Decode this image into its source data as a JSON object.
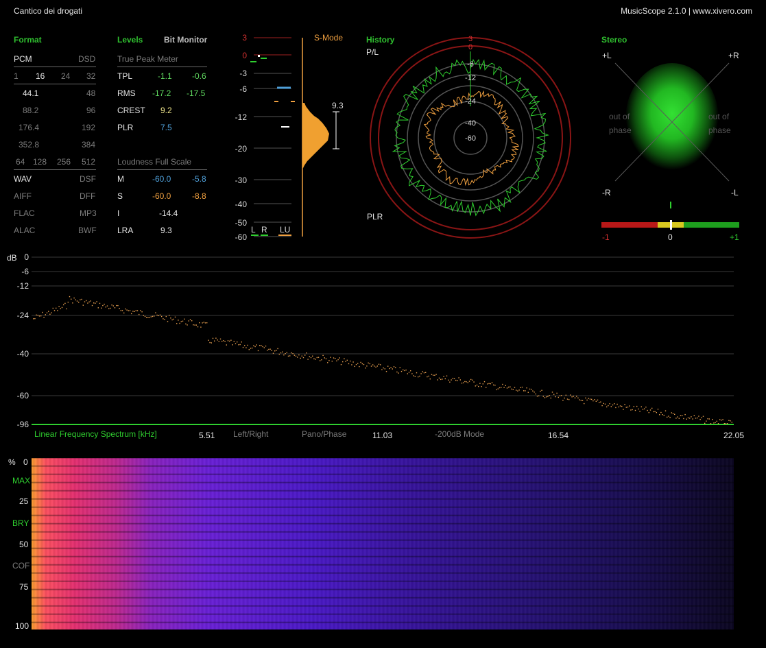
{
  "title": "Cantico dei drogati",
  "app_info": "MusicScope 2.1.0 | www.xivero.com",
  "format": {
    "heading": "Format",
    "pcm_label": "PCM",
    "dsd_label": "DSD",
    "bit_depths": [
      "1",
      "16",
      "24",
      "32"
    ],
    "rates": [
      {
        "pcm": "44.1",
        "dsd": "48",
        "active": true
      },
      {
        "pcm": "88.2",
        "dsd": "96",
        "active": false
      },
      {
        "pcm": "176.4",
        "dsd": "192",
        "active": false
      },
      {
        "pcm": "352.8",
        "dsd": "384",
        "active": false
      }
    ],
    "dsd_rates": [
      "64",
      "128",
      "256",
      "512"
    ],
    "containers": [
      {
        "left": "WAV",
        "right": "DSF",
        "left_active": true
      },
      {
        "left": "AIFF",
        "right": "DFF",
        "left_active": false
      },
      {
        "left": "FLAC",
        "right": "MP3",
        "left_active": false
      },
      {
        "left": "ALAC",
        "right": "BWF",
        "left_active": false
      }
    ]
  },
  "levels": {
    "heading": "Levels",
    "bit_monitor": "Bit Monitor",
    "true_peak_title": "True Peak Meter",
    "rows": [
      {
        "label": "TPL",
        "a": "-1.1",
        "b": "-0.6"
      },
      {
        "label": "RMS",
        "a": "-17.2",
        "b": "-17.5"
      },
      {
        "label": "CREST",
        "a": "9.2",
        "b": ""
      },
      {
        "label": "PLR",
        "a": "7.5",
        "b": ""
      }
    ],
    "loudness_title": "Loudness Full Scale",
    "loudness_rows": [
      {
        "label": "M",
        "a": "-60.0",
        "b": "-5.8"
      },
      {
        "label": "S",
        "a": "-60.0",
        "b": "-8.8"
      },
      {
        "label": "I",
        "a": "-14.4",
        "b": ""
      },
      {
        "label": "LRA",
        "a": "9.3",
        "b": ""
      }
    ]
  },
  "meter": {
    "scale": [
      "3",
      "0",
      "-3",
      "-6",
      "-12",
      "-20",
      "-30",
      "-40",
      "-50",
      "-60"
    ],
    "s_mode": "S-Mode",
    "lra_value": "9.3",
    "channels": [
      "L",
      "R",
      "LU"
    ]
  },
  "history": {
    "heading": "History",
    "top_label": "P/L",
    "bottom_label": "PLR",
    "ring_labels": [
      "3",
      "0",
      "-6",
      "-12",
      "-24",
      "-40",
      "-60"
    ]
  },
  "stereo": {
    "heading": "Stereo",
    "corners": [
      "+L",
      "+R",
      "-R",
      "-L"
    ],
    "out_of_phase_left": [
      "out of",
      "phase"
    ],
    "out_of_phase_right": [
      "out of",
      "phase"
    ],
    "correlation_labels": [
      "-1",
      "0",
      "+1"
    ],
    "correlation_value": 0.0
  },
  "spectrum": {
    "db_label": "dB",
    "db_ticks": [
      "0",
      "-6",
      "-12",
      "-24",
      "-40",
      "-60",
      "-96"
    ],
    "caption": "Linear Frequency Spectrum [kHz]",
    "freq_ticks": [
      "5.51",
      "11.03",
      "16.54",
      "22.05"
    ],
    "mode_buttons": [
      "Left/Right",
      "Pano/Phase",
      "-200dB Mode"
    ]
  },
  "spectrogram": {
    "pct_label": "%",
    "ticks": [
      "0",
      "25",
      "50",
      "75",
      "100"
    ],
    "markers": [
      "MAX",
      "BRY",
      "COF"
    ]
  },
  "colors": {
    "green": "#2fcf2f",
    "orange": "#f0a040",
    "red": "#d43030",
    "blue": "#4f9fd8"
  }
}
